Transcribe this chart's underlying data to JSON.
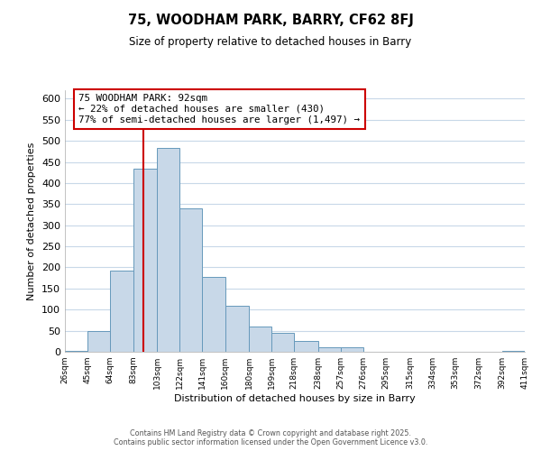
{
  "title": "75, WOODHAM PARK, BARRY, CF62 8FJ",
  "subtitle": "Size of property relative to detached houses in Barry",
  "xlabel": "Distribution of detached houses by size in Barry",
  "ylabel": "Number of detached properties",
  "bar_color": "#c8d8e8",
  "bar_edge_color": "#6699bb",
  "bin_labels": [
    "26sqm",
    "45sqm",
    "64sqm",
    "83sqm",
    "103sqm",
    "122sqm",
    "141sqm",
    "160sqm",
    "180sqm",
    "199sqm",
    "218sqm",
    "238sqm",
    "257sqm",
    "276sqm",
    "295sqm",
    "315sqm",
    "334sqm",
    "353sqm",
    "372sqm",
    "392sqm",
    "411sqm"
  ],
  "bin_edges": [
    26,
    45,
    64,
    83,
    103,
    122,
    141,
    160,
    180,
    199,
    218,
    238,
    257,
    276,
    295,
    315,
    334,
    353,
    372,
    392,
    411
  ],
  "counts": [
    3,
    50,
    192,
    433,
    483,
    340,
    178,
    110,
    60,
    44,
    25,
    10,
    11,
    0,
    1,
    0,
    0,
    0,
    0,
    3
  ],
  "ylim": [
    0,
    620
  ],
  "yticks": [
    0,
    50,
    100,
    150,
    200,
    250,
    300,
    350,
    400,
    450,
    500,
    550,
    600
  ],
  "vline_x": 92,
  "annotation_title": "75 WOODHAM PARK: 92sqm",
  "annotation_line1": "← 22% of detached houses are smaller (430)",
  "annotation_line2": "77% of semi-detached houses are larger (1,497) →",
  "annotation_box_color": "#ffffff",
  "annotation_box_edge": "#cc0000",
  "vline_color": "#cc0000",
  "footer1": "Contains HM Land Registry data © Crown copyright and database right 2025.",
  "footer2": "Contains public sector information licensed under the Open Government Licence v3.0.",
  "background_color": "#ffffff",
  "grid_color": "#c8d8e8"
}
